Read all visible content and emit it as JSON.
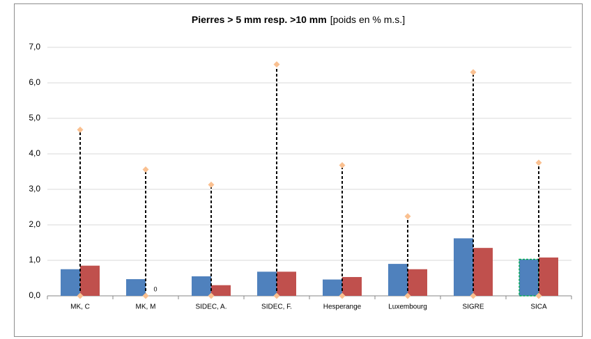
{
  "chart_data": {
    "type": "bar",
    "title": "Pierres > 5 mm resp. >10 mm",
    "subtitle": "[poids en % m.s.]",
    "categories": [
      "MK, C",
      "MK, M",
      "SIDEC, A.",
      "SIDEC, F.",
      "Hesperange",
      "Luxembourg",
      "SIGRE",
      "SICA"
    ],
    "series": [
      {
        "kind": "bar",
        "color": "#4f81bd",
        "values": [
          0.75,
          0.47,
          0.55,
          0.68,
          0.46,
          0.9,
          1.62,
          1.03
        ]
      },
      {
        "kind": "bar",
        "color": "#c0504d",
        "values": [
          0.85,
          0,
          0.3,
          0.68,
          0.53,
          0.75,
          1.35,
          1.08
        ],
        "value_labels": [
          null,
          "0",
          null,
          null,
          null,
          null,
          null,
          null
        ]
      },
      {
        "kind": "marker",
        "color": "#fac090",
        "values": [
          4.68,
          3.56,
          3.13,
          6.52,
          3.68,
          2.24,
          6.3,
          3.75
        ]
      },
      {
        "kind": "marker",
        "color": "#fac090",
        "values": [
          0,
          0,
          0,
          0,
          0,
          0,
          0,
          0
        ]
      }
    ],
    "range_line": {
      "low_series": 3,
      "high_series": 2,
      "color": "#000000"
    },
    "highlight": {
      "series": 0,
      "index": 7,
      "color": "#00b050"
    },
    "ylim": [
      0,
      7
    ],
    "yticks": [
      {
        "value": 0,
        "label": "0,0"
      },
      {
        "value": 1,
        "label": "1,0"
      },
      {
        "value": 2,
        "label": "2,0"
      },
      {
        "value": 3,
        "label": "3,0"
      },
      {
        "value": 4,
        "label": "4,0"
      },
      {
        "value": 5,
        "label": "5,0"
      },
      {
        "value": 6,
        "label": "6,0"
      },
      {
        "value": 7,
        "label": "7,0"
      }
    ],
    "grid": true
  }
}
